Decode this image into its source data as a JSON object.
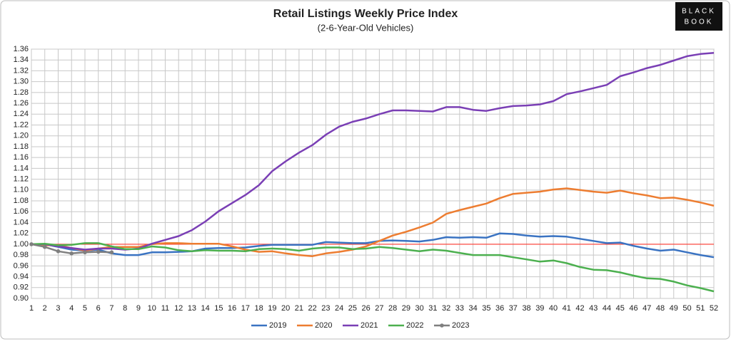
{
  "chart_data": {
    "type": "line",
    "title": "Retail Listings Weekly Price Index",
    "subtitle": "(2-6-Year-Old Vehicles)",
    "logo": [
      "BLACK",
      "BOOK"
    ],
    "categories": [
      1,
      2,
      3,
      4,
      5,
      6,
      7,
      8,
      9,
      10,
      11,
      12,
      13,
      14,
      15,
      16,
      17,
      18,
      19,
      20,
      21,
      22,
      23,
      24,
      25,
      26,
      27,
      28,
      29,
      30,
      31,
      32,
      33,
      34,
      35,
      36,
      37,
      38,
      39,
      40,
      41,
      42,
      43,
      44,
      45,
      46,
      47,
      48,
      49,
      50,
      51,
      52
    ],
    "ylim": [
      0.9,
      1.36
    ],
    "yticks": [
      {
        "value": 0.9,
        "label": "0.90"
      },
      {
        "value": 0.92,
        "label": "0.92"
      },
      {
        "value": 0.94,
        "label": "0.94"
      },
      {
        "value": 0.96,
        "label": "0.96"
      },
      {
        "value": 0.98,
        "label": "0.98"
      },
      {
        "value": 1,
        "label": "1.00"
      },
      {
        "value": 1.02,
        "label": "1.02"
      },
      {
        "value": 1.04,
        "label": "1.04"
      },
      {
        "value": 1.06,
        "label": "1.06"
      },
      {
        "value": 1.08,
        "label": "1.08"
      },
      {
        "value": 1.1,
        "label": "1.10"
      },
      {
        "value": 1.12,
        "label": "1.12"
      },
      {
        "value": 1.14,
        "label": "1.14"
      },
      {
        "value": 1.16,
        "label": "1.16"
      },
      {
        "value": 1.18,
        "label": "1.18"
      },
      {
        "value": 1.2,
        "label": "1.20"
      },
      {
        "value": 1.22,
        "label": "1.22"
      },
      {
        "value": 1.24,
        "label": "1.24"
      },
      {
        "value": 1.26,
        "label": "1.26"
      },
      {
        "value": 1.28,
        "label": "1.28"
      },
      {
        "value": 1.3,
        "label": "1.30"
      },
      {
        "value": 1.32,
        "label": "1.32"
      },
      {
        "value": 1.34,
        "label": "1.34"
      },
      {
        "value": 1.36,
        "label": "1.36"
      }
    ],
    "grid": true,
    "reference_line": {
      "value": 1,
      "color": "#ff3b30"
    },
    "legend": "bottom",
    "series": [
      {
        "name": "2019",
        "color": "#3a73c2",
        "markers": false,
        "values": [
          1.0,
          1.0,
          0.995,
          0.99,
          0.988,
          0.99,
          0.983,
          0.98,
          0.98,
          0.985,
          0.985,
          0.986,
          0.987,
          0.992,
          0.993,
          0.993,
          0.994,
          0.997,
          0.999,
          0.999,
          0.999,
          0.999,
          1.004,
          1.003,
          1.002,
          1.002,
          1.006,
          1.007,
          1.006,
          1.005,
          1.008,
          1.013,
          1.012,
          1.013,
          1.012,
          1.02,
          1.019,
          1.016,
          1.014,
          1.015,
          1.014,
          1.01,
          1.006,
          1.002,
          1.003,
          0.997,
          0.992,
          0.988,
          0.99,
          0.985,
          0.98,
          0.976
        ]
      },
      {
        "name": "2020",
        "color": "#ed7d31",
        "markers": false,
        "values": [
          1.0,
          0.998,
          0.998,
          0.993,
          0.988,
          0.992,
          0.995,
          0.995,
          0.995,
          1.0,
          1.002,
          1.002,
          1.001,
          1.001,
          1.001,
          0.996,
          0.99,
          0.986,
          0.987,
          0.983,
          0.98,
          0.978,
          0.983,
          0.986,
          0.99,
          0.996,
          1.006,
          1.016,
          1.023,
          1.031,
          1.04,
          1.056,
          1.063,
          1.069,
          1.075,
          1.085,
          1.093,
          1.095,
          1.097,
          1.101,
          1.103,
          1.1,
          1.097,
          1.095,
          1.099,
          1.094,
          1.09,
          1.085,
          1.086,
          1.082,
          1.077,
          1.071
        ]
      },
      {
        "name": "2021",
        "color": "#7a3fb5",
        "markers": false,
        "values": [
          1.0,
          1.0,
          0.996,
          0.993,
          0.99,
          0.992,
          0.992,
          0.99,
          0.992,
          1.001,
          1.008,
          1.015,
          1.026,
          1.042,
          1.061,
          1.076,
          1.091,
          1.109,
          1.135,
          1.153,
          1.169,
          1.183,
          1.202,
          1.217,
          1.226,
          1.232,
          1.24,
          1.247,
          1.247,
          1.246,
          1.245,
          1.253,
          1.253,
          1.248,
          1.246,
          1.251,
          1.255,
          1.256,
          1.258,
          1.264,
          1.277,
          1.282,
          1.288,
          1.294,
          1.31,
          1.317,
          1.325,
          1.331,
          1.339,
          1.347,
          1.351,
          1.353
        ]
      },
      {
        "name": "2022",
        "color": "#4cb04f",
        "markers": false,
        "values": [
          1.0,
          1.001,
          0.998,
          0.999,
          1.002,
          1.002,
          0.996,
          0.991,
          0.991,
          0.996,
          0.994,
          0.989,
          0.987,
          0.989,
          0.988,
          0.988,
          0.987,
          0.991,
          0.992,
          0.991,
          0.988,
          0.992,
          0.994,
          0.994,
          0.991,
          0.992,
          0.995,
          0.993,
          0.99,
          0.987,
          0.99,
          0.988,
          0.984,
          0.98,
          0.98,
          0.98,
          0.976,
          0.972,
          0.968,
          0.97,
          0.965,
          0.958,
          0.953,
          0.952,
          0.948,
          0.942,
          0.937,
          0.936,
          0.931,
          0.924,
          0.919,
          0.913
        ]
      },
      {
        "name": "2023",
        "color": "#7f7f7f",
        "markers": true,
        "values": [
          1.0,
          0.995,
          0.987,
          0.983,
          0.985,
          0.986,
          0.985,
          null,
          null,
          null,
          null,
          null,
          null,
          null,
          null,
          null,
          null,
          null,
          null,
          null,
          null,
          null,
          null,
          null,
          null,
          null,
          null,
          null,
          null,
          null,
          null,
          null,
          null,
          null,
          null,
          null,
          null,
          null,
          null,
          null,
          null,
          null,
          null,
          null,
          null,
          null,
          null,
          null,
          null,
          null,
          null,
          null
        ]
      }
    ]
  }
}
